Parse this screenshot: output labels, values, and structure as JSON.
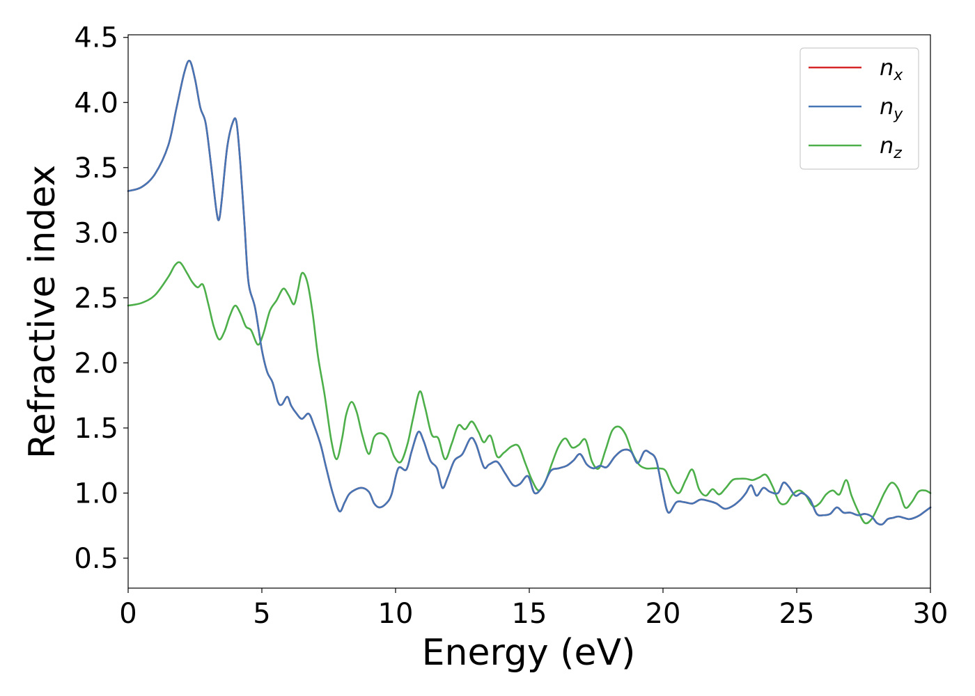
{
  "chart_data": {
    "type": "line",
    "title": "",
    "xlabel": "Energy (eV)",
    "ylabel": "Refractive index",
    "xlim": [
      0,
      30
    ],
    "ylim": [
      0.27,
      4.52
    ],
    "xticks": [
      "0",
      "5",
      "10",
      "15",
      "20",
      "25",
      "30"
    ],
    "yticks": [
      "0.5",
      "1.0",
      "1.5",
      "2.0",
      "2.5",
      "3.0",
      "3.5",
      "4.0",
      "4.5"
    ],
    "legend_position": "top-right",
    "grid": false,
    "series": [
      {
        "name": "n_x",
        "label_base": "n",
        "label_sub": "x",
        "color": "#d62728",
        "x": [
          0,
          0.5,
          1.0,
          1.5,
          1.8,
          2.1,
          2.3,
          2.5,
          2.7,
          2.9,
          3.1,
          3.3,
          3.4,
          3.5,
          3.7,
          3.9,
          4.05,
          4.2,
          4.35,
          4.5,
          4.75,
          5.0,
          5.2,
          5.4,
          5.6,
          5.75,
          5.95,
          6.1,
          6.3,
          6.5,
          6.75,
          6.95,
          7.2,
          7.4,
          7.65,
          7.9,
          8.1,
          8.3,
          8.7,
          9.0,
          9.2,
          9.4,
          9.65,
          9.85,
          10.1,
          10.4,
          10.6,
          10.85,
          11.05,
          11.3,
          11.55,
          11.75,
          11.95,
          12.2,
          12.5,
          12.8,
          13.0,
          13.3,
          13.5,
          13.8,
          14.1,
          14.4,
          14.65,
          14.95,
          15.2,
          15.5,
          15.8,
          16.1,
          16.4,
          16.65,
          16.9,
          17.15,
          17.4,
          17.65,
          17.9,
          18.2,
          18.5,
          18.8,
          19.05,
          19.3,
          19.5,
          19.75,
          20.0,
          20.2,
          20.5,
          20.8,
          21.1,
          21.4,
          21.7,
          22.0,
          22.3,
          22.6,
          22.9,
          23.1,
          23.3,
          23.5,
          23.75,
          24.0,
          24.3,
          24.5,
          24.7,
          24.95,
          25.2,
          25.5,
          25.75,
          26.0,
          26.25,
          26.5,
          26.75,
          27.0,
          27.3,
          27.55,
          27.8,
          28.0,
          28.2,
          28.4,
          28.6,
          28.8,
          29.0,
          29.2,
          29.4,
          29.6,
          29.8,
          30.0
        ],
        "y": [
          3.32,
          3.35,
          3.45,
          3.67,
          3.95,
          4.23,
          4.32,
          4.18,
          3.96,
          3.84,
          3.52,
          3.17,
          3.1,
          3.25,
          3.65,
          3.84,
          3.85,
          3.52,
          3.07,
          2.62,
          2.42,
          2.1,
          1.93,
          1.85,
          1.7,
          1.68,
          1.74,
          1.67,
          1.61,
          1.57,
          1.61,
          1.52,
          1.37,
          1.2,
          1.0,
          0.86,
          0.93,
          1.0,
          1.04,
          1.01,
          0.92,
          0.89,
          0.92,
          0.99,
          1.19,
          1.18,
          1.32,
          1.47,
          1.4,
          1.25,
          1.19,
          1.04,
          1.12,
          1.25,
          1.3,
          1.42,
          1.38,
          1.2,
          1.22,
          1.24,
          1.15,
          1.06,
          1.07,
          1.13,
          1.0,
          1.05,
          1.17,
          1.19,
          1.21,
          1.25,
          1.3,
          1.22,
          1.19,
          1.21,
          1.2,
          1.28,
          1.33,
          1.32,
          1.23,
          1.32,
          1.31,
          1.25,
          1.0,
          0.85,
          0.93,
          0.93,
          0.92,
          0.95,
          0.94,
          0.92,
          0.88,
          0.9,
          0.95,
          1.0,
          1.06,
          0.98,
          1.04,
          1.01,
          1.0,
          1.08,
          1.05,
          0.98,
          1.0,
          0.95,
          0.84,
          0.83,
          0.84,
          0.89,
          0.85,
          0.85,
          0.83,
          0.84,
          0.82,
          0.77,
          0.76,
          0.8,
          0.81,
          0.82,
          0.81,
          0.8,
          0.81,
          0.83,
          0.86,
          0.89
        ]
      },
      {
        "name": "n_y",
        "label_base": "n",
        "label_sub": "y",
        "color": "#4575b4",
        "x": [
          0,
          0.5,
          1.0,
          1.5,
          1.8,
          2.1,
          2.3,
          2.5,
          2.7,
          2.9,
          3.1,
          3.3,
          3.4,
          3.5,
          3.7,
          3.9,
          4.05,
          4.2,
          4.35,
          4.5,
          4.75,
          5.0,
          5.2,
          5.4,
          5.6,
          5.75,
          5.95,
          6.1,
          6.3,
          6.5,
          6.75,
          6.95,
          7.2,
          7.4,
          7.65,
          7.9,
          8.1,
          8.3,
          8.7,
          9.0,
          9.2,
          9.4,
          9.65,
          9.85,
          10.1,
          10.4,
          10.6,
          10.85,
          11.05,
          11.3,
          11.55,
          11.75,
          11.95,
          12.2,
          12.5,
          12.8,
          13.0,
          13.3,
          13.5,
          13.8,
          14.1,
          14.4,
          14.65,
          14.95,
          15.2,
          15.5,
          15.8,
          16.1,
          16.4,
          16.65,
          16.9,
          17.15,
          17.4,
          17.65,
          17.9,
          18.2,
          18.5,
          18.8,
          19.05,
          19.3,
          19.5,
          19.75,
          20.0,
          20.2,
          20.5,
          20.8,
          21.1,
          21.4,
          21.7,
          22.0,
          22.3,
          22.6,
          22.9,
          23.1,
          23.3,
          23.5,
          23.75,
          24.0,
          24.3,
          24.5,
          24.7,
          24.95,
          25.2,
          25.5,
          25.75,
          26.0,
          26.25,
          26.5,
          26.75,
          27.0,
          27.3,
          27.55,
          27.8,
          28.0,
          28.2,
          28.4,
          28.6,
          28.8,
          29.0,
          29.2,
          29.4,
          29.6,
          29.8,
          30.0
        ],
        "y": [
          3.32,
          3.35,
          3.45,
          3.67,
          3.95,
          4.23,
          4.32,
          4.18,
          3.96,
          3.84,
          3.52,
          3.17,
          3.1,
          3.25,
          3.65,
          3.84,
          3.85,
          3.52,
          3.07,
          2.62,
          2.42,
          2.1,
          1.93,
          1.85,
          1.7,
          1.68,
          1.74,
          1.67,
          1.61,
          1.57,
          1.61,
          1.52,
          1.37,
          1.2,
          1.0,
          0.86,
          0.93,
          1.0,
          1.04,
          1.01,
          0.92,
          0.89,
          0.92,
          0.99,
          1.19,
          1.18,
          1.32,
          1.47,
          1.4,
          1.25,
          1.19,
          1.04,
          1.12,
          1.25,
          1.3,
          1.42,
          1.38,
          1.2,
          1.22,
          1.24,
          1.15,
          1.06,
          1.07,
          1.13,
          1.0,
          1.05,
          1.17,
          1.19,
          1.21,
          1.25,
          1.3,
          1.22,
          1.19,
          1.21,
          1.2,
          1.28,
          1.33,
          1.32,
          1.23,
          1.32,
          1.31,
          1.25,
          1.0,
          0.85,
          0.93,
          0.93,
          0.92,
          0.95,
          0.94,
          0.92,
          0.88,
          0.9,
          0.95,
          1.0,
          1.06,
          0.98,
          1.04,
          1.01,
          1.0,
          1.08,
          1.05,
          0.98,
          1.0,
          0.95,
          0.84,
          0.83,
          0.84,
          0.89,
          0.85,
          0.85,
          0.83,
          0.84,
          0.82,
          0.77,
          0.76,
          0.8,
          0.81,
          0.82,
          0.81,
          0.8,
          0.81,
          0.83,
          0.86,
          0.89
        ]
      },
      {
        "name": "n_z",
        "label_base": "n",
        "label_sub": "z",
        "color": "#4daf4a",
        "x": [
          0,
          0.5,
          1.0,
          1.5,
          1.75,
          1.95,
          2.2,
          2.4,
          2.6,
          2.8,
          3.0,
          3.2,
          3.4,
          3.6,
          3.8,
          4.0,
          4.2,
          4.4,
          4.6,
          4.85,
          5.05,
          5.3,
          5.55,
          5.8,
          6.0,
          6.2,
          6.35,
          6.5,
          6.7,
          6.9,
          7.1,
          7.35,
          7.6,
          7.8,
          8.0,
          8.15,
          8.35,
          8.55,
          8.75,
          9.0,
          9.2,
          9.45,
          9.7,
          9.95,
          10.2,
          10.45,
          10.65,
          10.9,
          11.1,
          11.35,
          11.6,
          11.85,
          12.1,
          12.35,
          12.6,
          12.85,
          13.1,
          13.3,
          13.55,
          13.8,
          14.05,
          14.35,
          14.6,
          14.85,
          15.1,
          15.35,
          15.6,
          15.85,
          16.1,
          16.35,
          16.6,
          16.85,
          17.1,
          17.35,
          17.6,
          17.85,
          18.1,
          18.35,
          18.6,
          18.85,
          19.1,
          19.35,
          19.6,
          19.85,
          20.1,
          20.35,
          20.6,
          20.85,
          21.1,
          21.35,
          21.6,
          21.85,
          22.1,
          22.35,
          22.6,
          22.85,
          23.1,
          23.35,
          23.6,
          23.85,
          24.1,
          24.35,
          24.6,
          24.85,
          25.1,
          25.35,
          25.6,
          25.85,
          26.1,
          26.35,
          26.6,
          26.85,
          27.05,
          27.3,
          27.55,
          27.8,
          28.05,
          28.3,
          28.55,
          28.8,
          29.05,
          29.3,
          29.55,
          29.8,
          30.0
        ],
        "y": [
          2.44,
          2.46,
          2.52,
          2.66,
          2.75,
          2.77,
          2.69,
          2.62,
          2.58,
          2.6,
          2.45,
          2.28,
          2.18,
          2.24,
          2.36,
          2.44,
          2.38,
          2.28,
          2.25,
          2.14,
          2.22,
          2.4,
          2.48,
          2.57,
          2.52,
          2.45,
          2.56,
          2.69,
          2.62,
          2.38,
          2.05,
          1.75,
          1.4,
          1.26,
          1.42,
          1.6,
          1.7,
          1.62,
          1.45,
          1.3,
          1.43,
          1.46,
          1.42,
          1.28,
          1.24,
          1.38,
          1.57,
          1.78,
          1.66,
          1.45,
          1.42,
          1.26,
          1.38,
          1.52,
          1.49,
          1.55,
          1.47,
          1.39,
          1.44,
          1.28,
          1.31,
          1.36,
          1.36,
          1.23,
          1.1,
          1.02,
          1.09,
          1.23,
          1.36,
          1.42,
          1.35,
          1.37,
          1.41,
          1.24,
          1.19,
          1.33,
          1.48,
          1.51,
          1.45,
          1.31,
          1.22,
          1.19,
          1.19,
          1.19,
          1.17,
          1.05,
          1.0,
          1.1,
          1.18,
          1.03,
          0.98,
          1.03,
          0.99,
          1.04,
          1.1,
          1.11,
          1.11,
          1.1,
          1.12,
          1.14,
          1.05,
          0.93,
          0.92,
          0.99,
          1.02,
          0.98,
          0.9,
          0.92,
          0.99,
          1.02,
          0.99,
          1.1,
          0.98,
          0.86,
          0.77,
          0.8,
          0.9,
          1.01,
          1.08,
          1.03,
          0.89,
          0.93,
          1.01,
          1.02,
          1.0
        ]
      }
    ]
  }
}
